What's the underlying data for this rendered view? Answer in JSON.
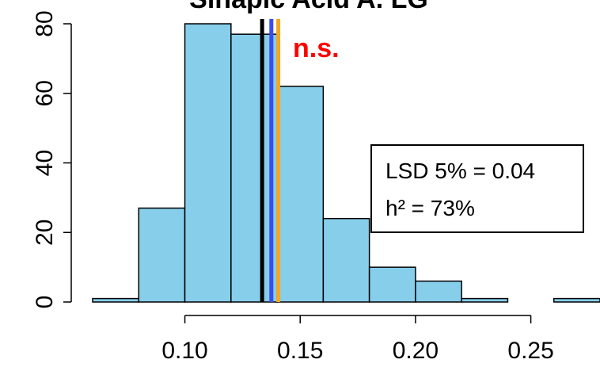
{
  "chart_data": {
    "type": "bar",
    "title": "Sinapic Acid A. LG",
    "xlabel": "",
    "ylabel": "",
    "bin_edges": [
      0.06,
      0.08,
      0.1,
      0.12,
      0.14,
      0.16,
      0.18,
      0.2,
      0.22,
      0.24,
      0.26,
      0.28
    ],
    "counts": [
      1,
      27,
      80,
      77,
      62,
      24,
      10,
      6,
      1,
      0,
      1
    ],
    "xlim": [
      0.06,
      0.28
    ],
    "ylim": [
      0,
      80
    ],
    "x_ticks": [
      0.1,
      0.15,
      0.2,
      0.25
    ],
    "x_tick_labels": [
      "0.10",
      "0.15",
      "0.20",
      "0.25"
    ],
    "y_ticks": [
      0,
      20,
      40,
      60,
      80
    ],
    "y_tick_labels": [
      "0",
      "20",
      "40",
      "60",
      "80"
    ],
    "bar_color": "#87CEEB",
    "vertical_lines": [
      {
        "x": 0.1335,
        "color": "#000000"
      },
      {
        "x": 0.1375,
        "color": "#3A4CF0"
      },
      {
        "x": 0.1405,
        "color": "#F5A623"
      }
    ],
    "annotations": {
      "significance": "n.s.",
      "significance_color": "#FF0000",
      "box_lines": [
        "LSD 5% = 0.04",
        "h² = 73%"
      ]
    },
    "grid": false
  }
}
